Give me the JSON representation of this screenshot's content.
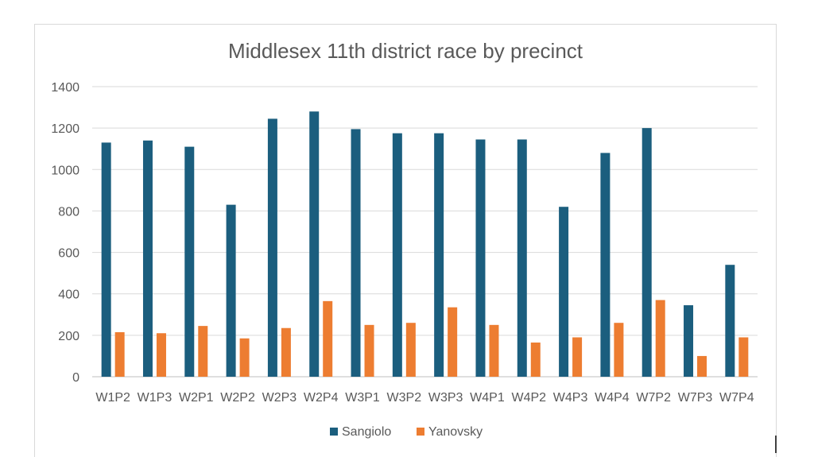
{
  "chart_data": {
    "type": "bar",
    "title": "Middlesex 11th district race by precinct",
    "xlabel": "",
    "ylabel": "",
    "ylim": [
      0,
      1400
    ],
    "yticks": [
      0,
      200,
      400,
      600,
      800,
      1000,
      1200,
      1400
    ],
    "grid": true,
    "legend_position": "bottom",
    "categories": [
      "W1P2",
      "W1P3",
      "W2P1",
      "W2P2",
      "W2P3",
      "W2P4",
      "W3P1",
      "W3P2",
      "W3P3",
      "W4P1",
      "W4P2",
      "W4P3",
      "W4P4",
      "W7P2",
      "W7P3",
      "W7P4"
    ],
    "series": [
      {
        "name": "Sangiolo",
        "color": "#1b5e7e",
        "values": [
          1130,
          1140,
          1110,
          830,
          1245,
          1280,
          1195,
          1175,
          1175,
          1145,
          1145,
          820,
          1080,
          1200,
          345,
          540
        ]
      },
      {
        "name": "Yanovsky",
        "color": "#ed7d31",
        "values": [
          215,
          210,
          245,
          185,
          235,
          365,
          250,
          260,
          335,
          250,
          165,
          190,
          260,
          370,
          100,
          190
        ]
      }
    ]
  }
}
